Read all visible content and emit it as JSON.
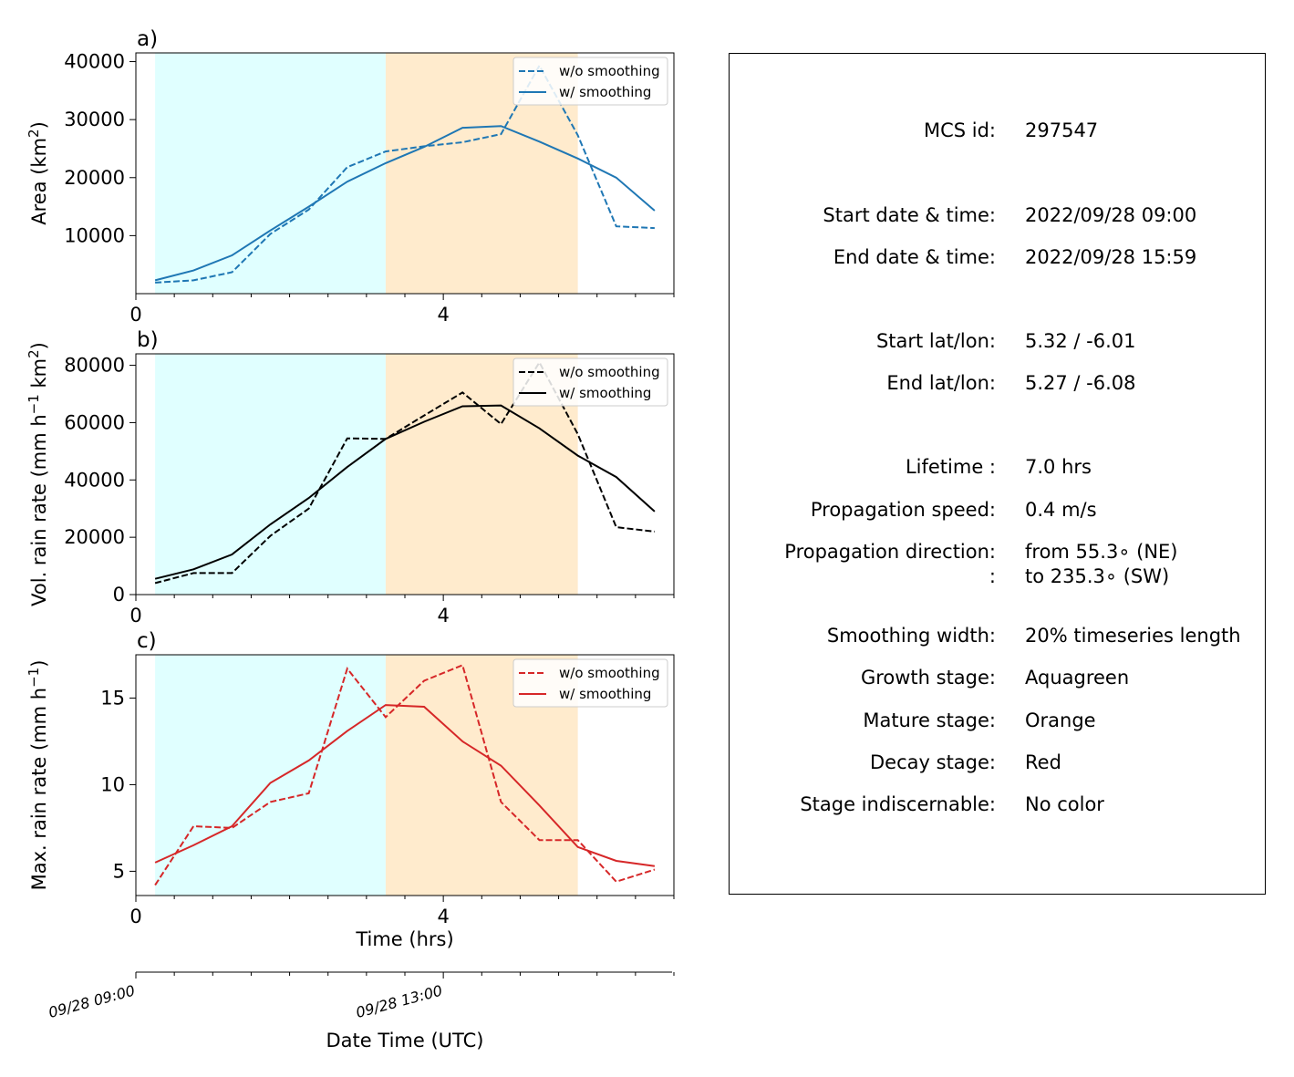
{
  "stage_colors": {
    "growth": "#e0ffff",
    "mature": "#ffebcd"
  },
  "panels": [
    {
      "letter": "a)",
      "ylabel": "Area  (km",
      "ylabel_sup": "2",
      "ylabel_end": ")",
      "color": "#1f77b4",
      "legend": [
        "w/o smoothing",
        "w/ smoothing"
      ],
      "yticks": [
        "10000",
        "20000",
        "30000",
        "40000"
      ]
    },
    {
      "letter": "b)",
      "ylabel": "Vol. rain rate (mm h",
      "ylabel_sup": "−1",
      "ylabel_mid": " km",
      "ylabel_sup2": "2",
      "ylabel_end": ")",
      "color": "#000000",
      "legend": [
        "w/o smoothing",
        "w/ smoothing"
      ],
      "yticks": [
        "0",
        "20000",
        "40000",
        "60000",
        "80000"
      ]
    },
    {
      "letter": "c)",
      "ylabel": "Max. rain rate  (mm h",
      "ylabel_sup": "−1",
      "ylabel_end": ")",
      "color": "#d62728",
      "legend": [
        "w/o smoothing",
        "w/ smoothing"
      ],
      "yticks": [
        "5",
        "10",
        "15"
      ]
    }
  ],
  "xlabel": "Time (hrs)",
  "xticks": [
    "0",
    "4"
  ],
  "datetime_axis": {
    "label": "Date Time (UTC)",
    "ticks": [
      "09/28 09:00",
      "09/28 13:00"
    ]
  },
  "chart_data": [
    {
      "type": "line",
      "panel": "a)",
      "ylabel": "Area (km2)",
      "xlabel": "Time (hrs)",
      "xlim": [
        0,
        7
      ],
      "ylim": [
        0,
        41500
      ],
      "stages": {
        "growth": [
          0.25,
          3.25
        ],
        "mature": [
          3.25,
          5.75
        ]
      },
      "series": [
        {
          "name": "w/o smoothing",
          "dash": true,
          "x": [
            0.25,
            0.75,
            1.25,
            1.75,
            2.25,
            2.75,
            3.25,
            3.75,
            4.25,
            4.75,
            5.25,
            5.75,
            6.25,
            6.75
          ],
          "y": [
            1900,
            2300,
            3700,
            10300,
            14500,
            21800,
            24500,
            25400,
            26100,
            27500,
            39300,
            27300,
            11600,
            11300
          ]
        },
        {
          "name": "w/ smoothing",
          "dash": false,
          "x": [
            0.25,
            0.75,
            1.25,
            1.75,
            2.25,
            2.75,
            3.25,
            3.75,
            4.25,
            4.75,
            5.25,
            5.75,
            6.25,
            6.75
          ],
          "y": [
            2300,
            4000,
            6600,
            10900,
            15000,
            19300,
            22500,
            25300,
            28600,
            28900,
            26200,
            23300,
            20000,
            14300
          ]
        }
      ]
    },
    {
      "type": "line",
      "panel": "b)",
      "ylabel": "Vol. rain rate (mm h-1 km2)",
      "xlabel": "Time (hrs)",
      "xlim": [
        0,
        7
      ],
      "ylim": [
        0,
        84000
      ],
      "stages": {
        "growth": [
          0.25,
          3.25
        ],
        "mature": [
          3.25,
          5.75
        ]
      },
      "series": [
        {
          "name": "w/o smoothing",
          "dash": true,
          "x": [
            0.25,
            0.75,
            1.25,
            1.75,
            2.25,
            2.75,
            3.25,
            3.75,
            4.25,
            4.75,
            5.25,
            5.75,
            6.25,
            6.75
          ],
          "y": [
            4000,
            7500,
            7500,
            20500,
            30000,
            54500,
            54300,
            62500,
            70500,
            59500,
            81000,
            56000,
            23500,
            22000
          ]
        },
        {
          "name": "w/ smoothing",
          "dash": false,
          "x": [
            0.25,
            0.75,
            1.25,
            1.75,
            2.25,
            2.75,
            3.25,
            3.75,
            4.25,
            4.75,
            5.25,
            5.75,
            6.25,
            6.75
          ],
          "y": [
            5500,
            8800,
            14000,
            24500,
            33700,
            44500,
            54300,
            60300,
            65700,
            66000,
            58000,
            48500,
            41000,
            29000
          ]
        }
      ]
    },
    {
      "type": "line",
      "panel": "c)",
      "ylabel": "Max. rain rate (mm h-1)",
      "xlabel": "Time (hrs)",
      "xlim": [
        0,
        7
      ],
      "ylim": [
        3.6,
        17.5
      ],
      "stages": {
        "growth": [
          0.25,
          3.25
        ],
        "mature": [
          3.25,
          5.75
        ]
      },
      "series": [
        {
          "name": "w/o smoothing",
          "dash": true,
          "x": [
            0.25,
            0.75,
            1.25,
            1.75,
            2.25,
            2.75,
            3.25,
            3.75,
            4.25,
            4.75,
            5.25,
            5.75,
            6.25,
            6.75
          ],
          "y": [
            4.2,
            7.6,
            7.5,
            9.0,
            9.5,
            16.7,
            13.9,
            16.0,
            16.9,
            9.0,
            6.8,
            6.8,
            4.4,
            5.1
          ]
        },
        {
          "name": "w/ smoothing",
          "dash": false,
          "x": [
            0.25,
            0.75,
            1.25,
            1.75,
            2.25,
            2.75,
            3.25,
            3.75,
            4.25,
            4.75,
            5.25,
            5.75,
            6.25,
            6.75
          ],
          "y": [
            5.5,
            6.5,
            7.6,
            10.1,
            11.4,
            13.1,
            14.6,
            14.5,
            12.5,
            11.1,
            8.8,
            6.4,
            5.6,
            5.3
          ]
        }
      ]
    }
  ],
  "info": [
    {
      "label": "MCS id:",
      "value": "297547"
    },
    {
      "label": "Start date & time:",
      "value": "2022/09/28 09:00"
    },
    {
      "label": "End date & time:",
      "value": "2022/09/28 15:59"
    },
    {
      "label": "Start lat/lon:",
      "value": "5.32 / -6.01"
    },
    {
      "label": "End lat/lon:",
      "value": "5.27 / -6.08"
    },
    {
      "label": "Lifetime :",
      "value": "7.0 hrs"
    },
    {
      "label": "Propagation speed:",
      "value": "0.4 m/s"
    },
    {
      "label": "Propagation direction:",
      "value": "from  55.3∘ (NE)"
    },
    {
      "label": ":",
      "value": "to   235.3∘ (SW)"
    },
    {
      "label": "Smoothing width:",
      "value": "20% timeseries length"
    },
    {
      "label": "Growth stage:",
      "value": "Aquagreen"
    },
    {
      "label": "Mature stage:",
      "value": "Orange"
    },
    {
      "label": "Decay stage:",
      "value": "Red"
    },
    {
      "label": "Stage indiscernable:",
      "value": "No color"
    }
  ]
}
